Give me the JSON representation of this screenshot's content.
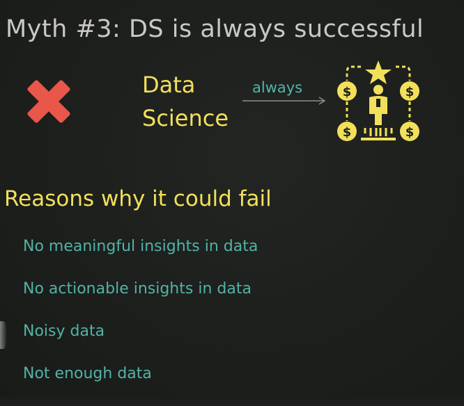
{
  "slide": {
    "title": "Myth #3: DS is always successful",
    "subject_lines": [
      "Data",
      "Science"
    ],
    "arrow_label": "always",
    "heading": "Reasons why it could fail",
    "reasons": [
      "No meaningful insights in data",
      "No actionable insights in data",
      "Noisy data",
      "Not enough data"
    ]
  },
  "icons": {
    "myth_marker": "red-cross-icon",
    "success": "success-money-star-icon",
    "arrow": "right-arrow-icon"
  },
  "colors": {
    "background": "#1c1e1c",
    "title": "#c9c9c4",
    "yellow_accent": "#f2e05a",
    "teal_text": "#52b3a6",
    "cross_red": "#e8574a"
  }
}
